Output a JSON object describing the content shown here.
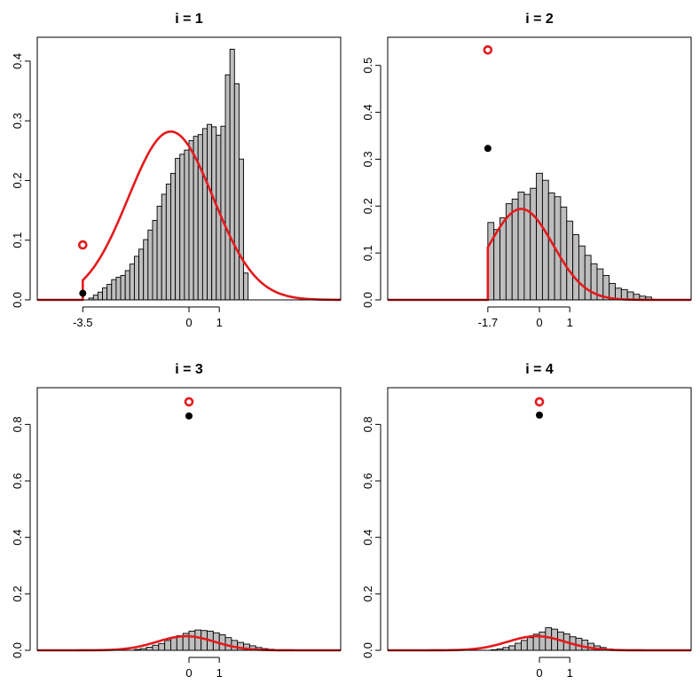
{
  "chart_data": [
    {
      "type": "bar",
      "title": "i = 1",
      "xlabel": "",
      "ylabel": "",
      "xlim": [
        -5,
        5
      ],
      "ylim": [
        0,
        0.44
      ],
      "x_ticks": [
        "-3.5",
        "0",
        "1"
      ],
      "x_tick_values": [
        -3.5,
        0,
        1
      ],
      "y_ticks": [
        0.0,
        0.1,
        0.2,
        0.3,
        0.4
      ],
      "y_tick_labels": [
        "0.0",
        "0.1",
        "0.2",
        "0.3",
        "0.4"
      ],
      "bin_start": -3.3,
      "bin_width": 0.15,
      "values": [
        0.003,
        0.008,
        0.013,
        0.02,
        0.026,
        0.034,
        0.038,
        0.041,
        0.049,
        0.06,
        0.073,
        0.085,
        0.101,
        0.117,
        0.133,
        0.157,
        0.177,
        0.194,
        0.212,
        0.237,
        0.244,
        0.251,
        0.267,
        0.274,
        0.277,
        0.287,
        0.294,
        0.29,
        0.276,
        0.291,
        0.377,
        0.42,
        0.362,
        0.236,
        0.045
      ],
      "truncation_point": -3.5,
      "density_curve": {
        "color": "#e41a1c",
        "x_start": -5,
        "x_end": 5,
        "mean": -0.6,
        "sd": 1.4,
        "scale": 0.282,
        "lower_cut": -3.5
      },
      "markers": {
        "open_red_y": 0.092,
        "filled_black_y": 0.011,
        "x": -3.5
      }
    },
    {
      "type": "bar",
      "title": "i = 2",
      "xlabel": "",
      "ylabel": "",
      "xlim": [
        -5,
        5
      ],
      "ylim": [
        0,
        0.56
      ],
      "x_ticks": [
        "-1.7",
        "0",
        "1"
      ],
      "x_tick_values": [
        -1.7,
        0,
        1
      ],
      "y_ticks": [
        0.0,
        0.1,
        0.2,
        0.3,
        0.4,
        0.5
      ],
      "y_tick_labels": [
        "0.0",
        "0.1",
        "0.2",
        "0.3",
        "0.4",
        "0.5"
      ],
      "bin_start": -1.7,
      "bin_width": 0.2,
      "values": [
        0.165,
        0.15,
        0.175,
        0.205,
        0.215,
        0.23,
        0.225,
        0.238,
        0.27,
        0.255,
        0.228,
        0.22,
        0.198,
        0.168,
        0.139,
        0.115,
        0.095,
        0.077,
        0.066,
        0.052,
        0.035,
        0.025,
        0.022,
        0.017,
        0.012,
        0.008,
        0.006
      ],
      "truncation_point": -1.7,
      "density_curve": {
        "color": "#e41a1c",
        "x_start": -5,
        "x_end": 5,
        "mean": -0.6,
        "sd": 1.05,
        "scale": 0.194,
        "lower_cut": -1.7
      },
      "markers": {
        "open_red_y": 0.533,
        "filled_black_y": 0.323,
        "x": -1.7
      }
    },
    {
      "type": "bar",
      "title": "i = 3",
      "xlabel": "",
      "ylabel": "",
      "xlim": [
        -5,
        5
      ],
      "ylim": [
        0,
        0.93
      ],
      "x_ticks": [
        "0",
        "1"
      ],
      "x_tick_values": [
        0,
        1
      ],
      "y_ticks": [
        0.0,
        0.2,
        0.4,
        0.6,
        0.8
      ],
      "y_tick_labels": [
        "0.0",
        "0.2",
        "0.4",
        "0.6",
        "0.8"
      ],
      "bin_start": -1.8,
      "bin_width": 0.2,
      "values": [
        0.003,
        0.006,
        0.011,
        0.018,
        0.024,
        0.035,
        0.045,
        0.052,
        0.06,
        0.068,
        0.072,
        0.07,
        0.068,
        0.062,
        0.055,
        0.045,
        0.035,
        0.028,
        0.022,
        0.016,
        0.01,
        0.006,
        0.004
      ],
      "truncation_point": null,
      "density_curve": {
        "color": "#e41a1c",
        "x_start": -5,
        "x_end": 5,
        "mean": -0.1,
        "sd": 0.95,
        "scale": 0.05,
        "lower_cut": null
      },
      "markers": {
        "open_red_y": 0.88,
        "filled_black_y": 0.83,
        "x": 0
      }
    },
    {
      "type": "bar",
      "title": "i = 4",
      "xlabel": "",
      "ylabel": "",
      "xlim": [
        -5,
        5
      ],
      "ylim": [
        0,
        0.93
      ],
      "x_ticks": [
        "0",
        "1"
      ],
      "x_tick_values": [
        0,
        1
      ],
      "y_ticks": [
        0.0,
        0.2,
        0.4,
        0.6,
        0.8
      ],
      "y_tick_labels": [
        "0.0",
        "0.2",
        "0.4",
        "0.6",
        "0.8"
      ],
      "bin_start": -1.6,
      "bin_width": 0.2,
      "values": [
        0.002,
        0.005,
        0.01,
        0.016,
        0.025,
        0.035,
        0.045,
        0.057,
        0.065,
        0.08,
        0.075,
        0.065,
        0.058,
        0.048,
        0.043,
        0.036,
        0.025,
        0.016,
        0.01,
        0.005
      ],
      "truncation_point": null,
      "density_curve": {
        "color": "#e41a1c",
        "x_start": -5,
        "x_end": 5,
        "mean": -0.1,
        "sd": 0.95,
        "scale": 0.05,
        "lower_cut": null
      },
      "markers": {
        "open_red_y": 0.88,
        "filled_black_y": 0.833,
        "x": 0
      }
    }
  ]
}
